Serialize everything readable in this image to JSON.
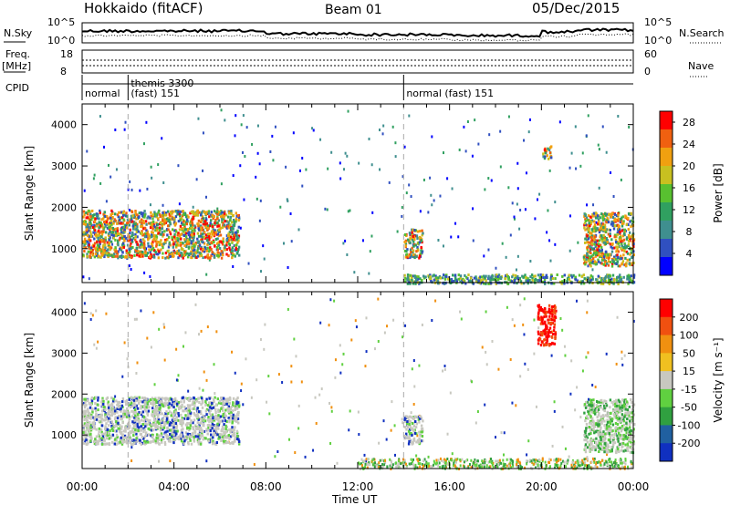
{
  "header": {
    "site": "Hokkaido (fitACF)",
    "beam": "Beam 01",
    "date": "05/Dec/2015"
  },
  "top_labels": {
    "nsky": "N.Sky",
    "nsearch": "N.Search",
    "noise_ticks_left": [
      "10^5",
      "10^0"
    ],
    "noise_ticks_right": [
      "10^5",
      "10^0"
    ],
    "freq_label": "Freq.",
    "freq_unit": "[MHz]",
    "freq_ticks": [
      "18",
      "8"
    ],
    "nave": "Nave",
    "nave_ticks": [
      "60",
      "0"
    ],
    "cpid": "CPID",
    "cpid_segments": [
      {
        "label": "normal",
        "start_hour": 0
      },
      {
        "label": "themis 3300",
        "label2": "(fast) 151",
        "start_hour": 2.0
      },
      {
        "label": "normal (fast) 151",
        "start_hour": 14.0
      }
    ]
  },
  "chart_data": [
    {
      "type": "heatmap",
      "name": "power",
      "ylabel": "Slant Range [km]",
      "yticks": [
        1000,
        2000,
        3000,
        4000
      ],
      "ylim": [
        180,
        4500
      ],
      "xlim": [
        0,
        24
      ],
      "colorbar": {
        "label": "Power [dB]",
        "ticks": [
          4,
          8,
          12,
          16,
          20,
          24,
          28
        ],
        "range": [
          0,
          30
        ],
        "colors": [
          "#0000ff",
          "#3050c0",
          "#3f8f8f",
          "#30a060",
          "#58c030",
          "#c8c020",
          "#f0a010",
          "#f06010",
          "#ff0000"
        ]
      },
      "regions": [
        {
          "x": [
            0.0,
            6.8
          ],
          "y": [
            800,
            1950
          ],
          "level": "strong"
        },
        {
          "x": [
            14.0,
            14.8
          ],
          "y": [
            800,
            1500
          ],
          "level": "strong"
        },
        {
          "x": [
            21.8,
            24.0
          ],
          "y": [
            600,
            1900
          ],
          "level": "strong"
        },
        {
          "x": [
            20.0,
            20.4
          ],
          "y": [
            3200,
            3500
          ],
          "level": "strong"
        },
        {
          "x": [
            14.0,
            24.0
          ],
          "y": [
            180,
            400
          ],
          "level": "medium"
        }
      ]
    },
    {
      "type": "heatmap",
      "name": "velocity",
      "ylabel": "Slant Range [km]",
      "yticks": [
        1000,
        2000,
        3000,
        4000
      ],
      "ylim": [
        180,
        4500
      ],
      "xlim": [
        0,
        24
      ],
      "xlabel": "Time UT",
      "xticks": [
        "00:00",
        "04:00",
        "08:00",
        "12:00",
        "16:00",
        "20:00",
        "00:00"
      ],
      "colorbar": {
        "label": "Velocity [m s⁻¹]",
        "ticks": [
          200,
          100,
          50,
          15,
          -15,
          -50,
          -100,
          -200
        ],
        "colors": [
          "#1030c0",
          "#2060a0",
          "#30a040",
          "#60d040",
          "#c8c8c0",
          "#f0c020",
          "#f09010",
          "#f05010",
          "#ff0000"
        ]
      },
      "regions": [
        {
          "x": [
            0.0,
            6.8
          ],
          "y": [
            800,
            1950
          ],
          "level": "ground"
        },
        {
          "x": [
            14.0,
            14.8
          ],
          "y": [
            800,
            1500
          ],
          "level": "ground"
        },
        {
          "x": [
            21.8,
            24.0
          ],
          "y": [
            600,
            1900
          ],
          "level": "mixed"
        },
        {
          "x": [
            19.8,
            20.6
          ],
          "y": [
            3200,
            4200
          ],
          "level": "red"
        }
      ]
    }
  ],
  "colors": {
    "dashed": "#aaaaaa",
    "frame": "#000000"
  }
}
